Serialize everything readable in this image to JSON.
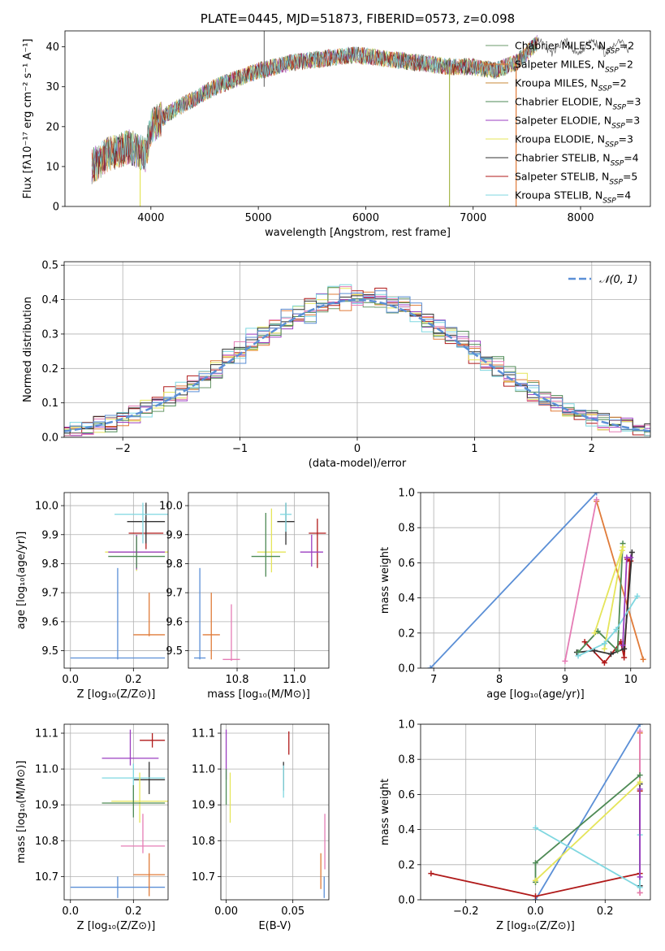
{
  "chart_data": [
    {
      "type": "line",
      "title": "PLATE=0445, MJD=51873, FIBERID=0573, z=0.098",
      "xlabel": "wavelength [Angstrom, rest frame]",
      "ylabel": "Flux [fλ10⁻¹⁷ erg cm⁻² s⁻¹ A⁻¹]",
      "xlim": [
        3200,
        8650
      ],
      "ylim": [
        0,
        44
      ],
      "xticks": [
        4000,
        5000,
        6000,
        7000,
        8000
      ],
      "yticks": [
        0,
        10,
        20,
        30,
        40
      ],
      "legend_position": "top-right",
      "legend": [
        {
          "name": "Chabrier MILES, N",
          "sub": "SSP",
          "tail": "=2",
          "color": "#6b9a6b"
        },
        {
          "name": "Salpeter MILES, N",
          "sub": "SSP",
          "tail": "=2",
          "color": "#e07b39"
        },
        {
          "name": "Kroupa MILES, N",
          "sub": "SSP",
          "tail": "=2",
          "color": "#c8883a"
        },
        {
          "name": "Chabrier ELODIE, N",
          "sub": "SSP",
          "tail": "=3",
          "color": "#4e8a55"
        },
        {
          "name": "Salpeter ELODIE, N",
          "sub": "SSP",
          "tail": "=3",
          "color": "#9b3ec0"
        },
        {
          "name": "Kroupa ELODIE, N",
          "sub": "SSP",
          "tail": "=3",
          "color": "#e5e55a"
        },
        {
          "name": "Chabrier STELIB, N",
          "sub": "SSP",
          "tail": "=4",
          "color": "#333333"
        },
        {
          "name": "Salpeter STELIB, N",
          "sub": "SSP",
          "tail": "=5",
          "color": "#b01a1a"
        },
        {
          "name": "Kroupa STELIB, N",
          "sub": "SSP",
          "tail": "=4",
          "color": "#7fd7e0"
        }
      ],
      "continuum_anchors": {
        "x": [
          3450,
          3600,
          3800,
          3950,
          4000,
          4200,
          4400,
          4600,
          4800,
          5000,
          5300,
          5600,
          5900,
          6200,
          6500,
          6800,
          7000,
          7200,
          7400,
          7600
        ],
        "y": [
          10,
          13,
          15,
          13,
          20,
          24,
          27,
          30,
          32,
          34,
          36,
          37,
          38,
          37,
          36,
          35,
          35,
          34,
          36,
          41
        ]
      },
      "spike_lines": [
        {
          "x": 3900,
          "y": [
            0,
            12
          ],
          "color": "#e5e55a"
        },
        {
          "x": 6780,
          "y": [
            0,
            35
          ],
          "color": "#a8b84c"
        },
        {
          "x": 7400,
          "y": [
            0,
            36
          ],
          "color": "#e07b39"
        },
        {
          "x": 5055,
          "y": [
            30,
            44
          ],
          "color": "#777777"
        }
      ]
    },
    {
      "type": "line",
      "xlabel": "(data-model)/error",
      "ylabel": "Normed distribution",
      "xlim": [
        -2.5,
        2.5
      ],
      "ylim": [
        0,
        0.51
      ],
      "xticks": [
        -2,
        -1,
        0,
        1,
        2
      ],
      "yticks": [
        0.0,
        0.1,
        0.2,
        0.3,
        0.4,
        0.5
      ],
      "legend_position": "top-right",
      "legend": [
        {
          "name": "𝒩(0, 1)",
          "color": "#5b8fd6",
          "dash": true
        }
      ],
      "series_colors": [
        "#6b9a6b",
        "#e07b39",
        "#b01a1a",
        "#9b3ec0",
        "#e5e55a",
        "#7fd7e0",
        "#4e8a55",
        "#e57cb5",
        "#333333",
        "#5b8fd6"
      ]
    },
    {
      "type": "scatter",
      "xlabel": "Z [log₁₀(Z/Z⊙)]",
      "ylabel": "age  [log₁₀(age/yr)]",
      "xlim": [
        -0.02,
        0.31
      ],
      "ylim": [
        9.44,
        10.045
      ],
      "xticks": [
        0.0,
        0.2
      ],
      "xtick_labels": [
        "0.0",
        "0.2"
      ],
      "yticks": [
        9.5,
        9.6,
        9.7,
        9.8,
        9.9,
        10.0
      ],
      "errorbars": [
        {
          "x": 0.15,
          "xerr": 0.15,
          "y": 9.475,
          "yerr": [
            0.005,
            0.31
          ],
          "color": "#5b8fd6"
        },
        {
          "x": 0.25,
          "xerr": 0.05,
          "y": 9.555,
          "yerr": [
            0.005,
            0.145
          ],
          "color": "#e07b39"
        },
        {
          "x": 0.24,
          "xerr": 0.055,
          "y": 9.905,
          "yerr": [
            0.055,
            0.055
          ],
          "color": "#b01a1a"
        },
        {
          "x": 0.24,
          "xerr": 0.06,
          "y": 9.945,
          "yerr": [
            0.075,
            0.065
          ],
          "color": "#333333"
        },
        {
          "x": 0.23,
          "xerr": 0.09,
          "y": 9.97,
          "yerr": [
            0.1,
            0.04
          ],
          "color": "#7fd7e0"
        },
        {
          "x": 0.21,
          "xerr": 0.1,
          "y": 9.84,
          "yerr": [
            0.065,
            0.06
          ],
          "color": "#e5e55a"
        },
        {
          "x": 0.21,
          "xerr": 0.09,
          "y": 9.84,
          "yerr": [
            0.06,
            0.06
          ],
          "color": "#9b3ec0"
        },
        {
          "x": 0.21,
          "xerr": 0.09,
          "y": 9.825,
          "yerr": [
            0.04,
            0.07
          ],
          "color": "#4e8a55"
        }
      ]
    },
    {
      "type": "scatter",
      "xlabel": "mass [log₁₀(M/M⊙)]",
      "xlim": [
        10.63,
        11.12
      ],
      "ylim": [
        9.44,
        10.045
      ],
      "xticks": [
        10.8,
        11.0
      ],
      "xtick_labels": [
        "10.8",
        "11.0"
      ],
      "yticks": [
        9.5,
        9.6,
        9.7,
        9.8,
        9.9,
        10.0
      ],
      "errorbars": [
        {
          "x": 10.67,
          "xerr": 0.02,
          "y": 9.475,
          "yerr": [
            0.005,
            0.31
          ],
          "color": "#5b8fd6"
        },
        {
          "x": 10.71,
          "xerr": 0.03,
          "y": 9.555,
          "yerr": [
            0.085,
            0.145
          ],
          "color": "#e07b39"
        },
        {
          "x": 10.78,
          "xerr": 0.03,
          "y": 9.47,
          "yerr": [
            0.005,
            0.19
          ],
          "color": "#e57cb5"
        },
        {
          "x": 11.08,
          "xerr": 0.03,
          "y": 9.905,
          "yerr": [
            0.12,
            0.05
          ],
          "color": "#b01a1a"
        },
        {
          "x": 11.06,
          "xerr": 0.04,
          "y": 9.84,
          "yerr": [
            0.05,
            0.06
          ],
          "color": "#9b3ec0"
        },
        {
          "x": 10.97,
          "xerr": 0.03,
          "y": 9.945,
          "yerr": [
            0.08,
            0.065
          ],
          "color": "#333333"
        },
        {
          "x": 10.97,
          "xerr": 0.02,
          "y": 9.97,
          "yerr": [
            0.06,
            0.04
          ],
          "color": "#7fd7e0"
        },
        {
          "x": 10.92,
          "xerr": 0.05,
          "y": 9.84,
          "yerr": [
            0.07,
            0.15
          ],
          "color": "#e5e55a"
        },
        {
          "x": 10.9,
          "xerr": 0.05,
          "y": 9.825,
          "yerr": [
            0.07,
            0.15
          ],
          "color": "#4e8a55"
        }
      ]
    },
    {
      "type": "line",
      "xlabel": "age  [log₁₀(age/yr)]",
      "ylabel": "mass weight",
      "xlim": [
        6.8,
        10.3
      ],
      "ylim": [
        0,
        1.0
      ],
      "xticks": [
        7,
        8,
        9,
        10
      ],
      "yticks": [
        0.0,
        0.2,
        0.4,
        0.6,
        0.8,
        1.0
      ],
      "series": [
        {
          "color": "#5b8fd6",
          "x": [
            6.95,
            9.48
          ],
          "y": [
            0.0,
            1.0
          ]
        },
        {
          "color": "#e07b39",
          "x": [
            9.48,
            10.19
          ],
          "y": [
            0.95,
            0.05
          ]
        },
        {
          "color": "#e57cb5",
          "x": [
            9.0,
            9.48
          ],
          "y": [
            0.04,
            0.96
          ]
        },
        {
          "color": "#b01a1a",
          "x": [
            9.3,
            9.6,
            9.85,
            9.9,
            9.99,
            10.0,
            9.95
          ],
          "y": [
            0.15,
            0.03,
            0.15,
            0.06,
            0.61,
            0.61,
            0.62
          ]
        },
        {
          "color": "#333333",
          "x": [
            9.18,
            9.45,
            9.7,
            9.9,
            10.02
          ],
          "y": [
            0.09,
            0.1,
            0.08,
            0.11,
            0.66
          ]
        },
        {
          "color": "#4e8a55",
          "x": [
            9.2,
            9.5,
            9.8,
            9.88
          ],
          "y": [
            0.09,
            0.21,
            0.1,
            0.71
          ]
        },
        {
          "color": "#e5e55a",
          "x": [
            9.45,
            9.88,
            9.6,
            9.87
          ],
          "y": [
            0.2,
            0.69,
            0.11,
            0.67
          ]
        },
        {
          "color": "#7fd7e0",
          "x": [
            9.2,
            9.6,
            9.78,
            10.1
          ],
          "y": [
            0.07,
            0.14,
            0.22,
            0.41
          ]
        },
        {
          "color": "#9b3ec0",
          "x": [
            9.88,
            9.94,
            10.0
          ],
          "y": [
            0.13,
            0.63,
            0.63
          ]
        }
      ]
    },
    {
      "type": "scatter",
      "xlabel": "Z [log₁₀(Z/Z⊙)]",
      "ylabel": "mass [log₁₀(M/M⊙)]",
      "xlim": [
        -0.02,
        0.31
      ],
      "ylim": [
        10.635,
        11.125
      ],
      "xticks": [
        0.0,
        0.2
      ],
      "xtick_labels": [
        "0.0",
        "0.2"
      ],
      "yticks": [
        10.7,
        10.8,
        10.9,
        11.0,
        11.1
      ],
      "errorbars": [
        {
          "x": 0.15,
          "xerr": 0.15,
          "y": 10.67,
          "yerr": [
            0.03,
            0.03
          ],
          "color": "#5b8fd6"
        },
        {
          "x": 0.25,
          "xerr": 0.05,
          "y": 10.705,
          "yerr": [
            0.06,
            0.06
          ],
          "color": "#e07b39"
        },
        {
          "x": 0.23,
          "xerr": 0.07,
          "y": 10.785,
          "yerr": [
            0.02,
            0.09
          ],
          "color": "#e57cb5"
        },
        {
          "x": 0.26,
          "xerr": 0.04,
          "y": 11.08,
          "yerr": [
            0.02,
            0.02
          ],
          "color": "#b01a1a"
        },
        {
          "x": 0.19,
          "xerr": 0.09,
          "y": 11.03,
          "yerr": [
            0.02,
            0.08
          ],
          "color": "#9b3ec0"
        },
        {
          "x": 0.25,
          "xerr": 0.05,
          "y": 10.97,
          "yerr": [
            0.04,
            0.05
          ],
          "color": "#333333"
        },
        {
          "x": 0.2,
          "xerr": 0.1,
          "y": 10.975,
          "yerr": [
            0.06,
            0.04
          ],
          "color": "#7fd7e0"
        },
        {
          "x": 0.22,
          "xerr": 0.09,
          "y": 10.91,
          "yerr": [
            0.06,
            0.08
          ],
          "color": "#e5e55a"
        },
        {
          "x": 0.2,
          "xerr": 0.1,
          "y": 10.905,
          "yerr": [
            0.04,
            0.05
          ],
          "color": "#4e8a55"
        }
      ]
    },
    {
      "type": "scatter",
      "xlabel": "E(B-V)",
      "xlim": [
        -0.004,
        0.077
      ],
      "ylim": [
        10.635,
        11.125
      ],
      "xticks": [
        0.0,
        0.05
      ],
      "xtick_labels": [
        "0.00",
        "0.05"
      ],
      "yticks": [
        10.7,
        10.8,
        10.9,
        11.0,
        11.1
      ],
      "errorbars": [
        {
          "x": 0.0735,
          "y": 10.67,
          "yerr": [
            0.03,
            0.03
          ],
          "color": "#5b8fd6"
        },
        {
          "x": 0.071,
          "y": 10.705,
          "yerr": [
            0.04,
            0.06
          ],
          "color": "#e07b39"
        },
        {
          "x": 0.074,
          "y": 10.8,
          "yerr": [
            0.08,
            0.075
          ],
          "color": "#e57cb5"
        },
        {
          "x": 0.047,
          "y": 11.07,
          "yerr": [
            0.03,
            0.035
          ],
          "color": "#b01a1a"
        },
        {
          "x": 0.0,
          "y": 11.03,
          "yerr": [
            0.06,
            0.08
          ],
          "color": "#9b3ec0"
        },
        {
          "x": 0.043,
          "y": 10.98,
          "yerr": [
            0.04,
            0.04
          ],
          "color": "#333333"
        },
        {
          "x": 0.043,
          "y": 10.97,
          "yerr": [
            0.05,
            0.04
          ],
          "color": "#7fd7e0"
        },
        {
          "x": 0.003,
          "y": 10.91,
          "yerr": [
            0.06,
            0.08
          ],
          "color": "#e5e55a"
        },
        {
          "x": 0.0,
          "y": 10.95,
          "yerr": [
            0.05,
            0.05
          ],
          "color": "#4e8a55"
        }
      ]
    },
    {
      "type": "line",
      "xlabel": "Z [log₁₀(Z/Z⊙)]",
      "ylabel": "mass weight",
      "xlim": [
        -0.33,
        0.33
      ],
      "ylim": [
        0,
        1.0
      ],
      "xticks": [
        -0.2,
        0.0,
        0.2
      ],
      "xtick_labels": [
        "−0.2",
        "0.0",
        "0.2"
      ],
      "yticks": [
        0.0,
        0.2,
        0.4,
        0.6,
        0.8,
        1.0
      ],
      "series": [
        {
          "color": "#5b8fd6",
          "x": [
            0.0,
            0.3
          ],
          "y": [
            0.0,
            1.0
          ]
        },
        {
          "color": "#e07b39",
          "x": [
            0.3,
            0.3
          ],
          "y": [
            0.95,
            0.04
          ]
        },
        {
          "color": "#e57cb5",
          "x": [
            0.3,
            0.3
          ],
          "y": [
            0.96,
            0.04
          ]
        },
        {
          "color": "#b01a1a",
          "x": [
            -0.3,
            0.0,
            0.3,
            0.3
          ],
          "y": [
            0.15,
            0.02,
            0.15,
            0.62
          ]
        },
        {
          "color": "#333333",
          "x": [
            0.3,
            0.3
          ],
          "y": [
            0.08,
            0.66
          ]
        },
        {
          "color": "#4e8a55",
          "x": [
            0.0,
            0.0,
            0.3
          ],
          "y": [
            0.1,
            0.21,
            0.71
          ]
        },
        {
          "color": "#e5e55a",
          "x": [
            0.0,
            0.3
          ],
          "y": [
            0.11,
            0.67
          ]
        },
        {
          "color": "#7fd7e0",
          "x": [
            0.0,
            0.3,
            0.3
          ],
          "y": [
            0.41,
            0.07,
            0.37
          ]
        },
        {
          "color": "#9b3ec0",
          "x": [
            0.3,
            0.3
          ],
          "y": [
            0.13,
            0.63
          ]
        }
      ]
    }
  ]
}
